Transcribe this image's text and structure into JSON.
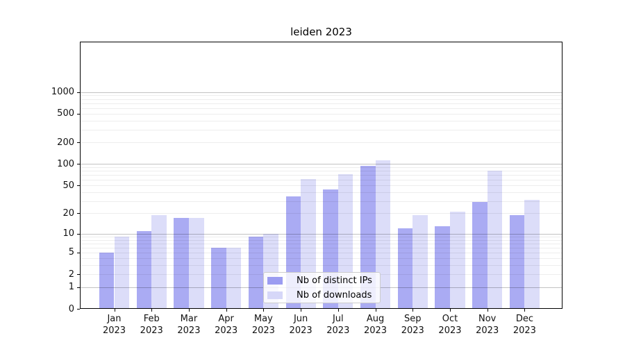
{
  "title": "leiden 2023",
  "chart_data": {
    "type": "bar",
    "title": "leiden 2023",
    "categories": [
      "Jan 2023",
      "Feb 2023",
      "Mar 2023",
      "Apr 2023",
      "May 2023",
      "Jun 2023",
      "Jul 2023",
      "Aug 2023",
      "Sep 2023",
      "Oct 2023",
      "Nov 2023",
      "Dec 2023"
    ],
    "series": [
      {
        "name": "Nb of distinct IPs",
        "color": "#9b9cf1",
        "values": [
          5,
          11,
          17,
          6,
          9,
          35,
          44,
          95,
          12,
          13,
          29,
          19
        ]
      },
      {
        "name": "Nb of downloads",
        "color": "#d6d7f8",
        "values": [
          9,
          19,
          17,
          6,
          10,
          61,
          72,
          112,
          19,
          21,
          80,
          31
        ]
      }
    ],
    "xlabel": "",
    "ylabel": "",
    "yscale": "log1p",
    "y_ticks": [
      0,
      1,
      2,
      5,
      10,
      20,
      50,
      100,
      200,
      500,
      1000
    ],
    "ylim": [
      0,
      1284
    ],
    "grid": "horizontal major + log-minor gridlines",
    "legend_position": "lower center",
    "bar_alpha": 0.85
  },
  "legend": {
    "items": [
      {
        "label": "Nb of distinct IPs",
        "color": "#9b9cf1"
      },
      {
        "label": "Nb of downloads",
        "color": "#d6d7f8"
      }
    ]
  },
  "colors": {
    "background": "#ffffff",
    "spine": "#000000",
    "major_grid": "rgba(0,0,0,0.24)",
    "minor_grid": "rgba(0,0,0,0.07)",
    "tick_label": "#111111"
  }
}
